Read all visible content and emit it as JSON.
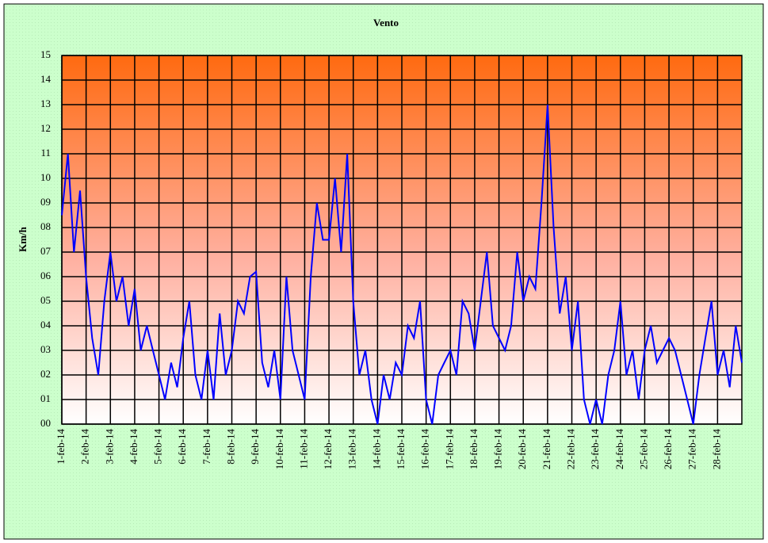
{
  "chart_data": {
    "type": "line",
    "title": "Vento",
    "ylabel": "Km/h",
    "xlim": [
      0,
      28
    ],
    "xticks": [
      {
        "value": 0,
        "label": "1-feb-14"
      },
      {
        "value": 1,
        "label": "2-feb-14"
      },
      {
        "value": 2,
        "label": "3-feb-14"
      },
      {
        "value": 3,
        "label": "4-feb-14"
      },
      {
        "value": 4,
        "label": "5-feb-14"
      },
      {
        "value": 5,
        "label": "6-feb-14"
      },
      {
        "value": 6,
        "label": "7-feb-14"
      },
      {
        "value": 7,
        "label": "8-feb-14"
      },
      {
        "value": 8,
        "label": "9-feb-14"
      },
      {
        "value": 9,
        "label": "10-feb-14"
      },
      {
        "value": 10,
        "label": "11-feb-14"
      },
      {
        "value": 11,
        "label": "12-feb-14"
      },
      {
        "value": 12,
        "label": "13-feb-14"
      },
      {
        "value": 13,
        "label": "14-feb-14"
      },
      {
        "value": 14,
        "label": "15-feb-14"
      },
      {
        "value": 15,
        "label": "16-feb-14"
      },
      {
        "value": 16,
        "label": "17-feb-14"
      },
      {
        "value": 17,
        "label": "18-feb-14"
      },
      {
        "value": 18,
        "label": "19-feb-14"
      },
      {
        "value": 19,
        "label": "20-feb-14"
      },
      {
        "value": 20,
        "label": "21-feb-14"
      },
      {
        "value": 21,
        "label": "22-feb-14"
      },
      {
        "value": 22,
        "label": "23-feb-14"
      },
      {
        "value": 23,
        "label": "24-feb-14"
      },
      {
        "value": 24,
        "label": "25-feb-14"
      },
      {
        "value": 25,
        "label": "26-feb-14"
      },
      {
        "value": 26,
        "label": "27-feb-14"
      },
      {
        "value": 27,
        "label": "28-feb-14"
      }
    ],
    "ylim": [
      0,
      15
    ],
    "yticks": [
      {
        "value": 0,
        "label": "00"
      },
      {
        "value": 1,
        "label": "01"
      },
      {
        "value": 2,
        "label": "02"
      },
      {
        "value": 3,
        "label": "03"
      },
      {
        "value": 4,
        "label": "04"
      },
      {
        "value": 5,
        "label": "05"
      },
      {
        "value": 6,
        "label": "06"
      },
      {
        "value": 7,
        "label": "07"
      },
      {
        "value": 8,
        "label": "08"
      },
      {
        "value": 9,
        "label": "09"
      },
      10,
      11,
      12,
      13,
      14,
      15
    ],
    "grid": true,
    "x": [
      0,
      0.25,
      0.5,
      0.75,
      1,
      1.25,
      1.5,
      1.75,
      2,
      2.25,
      2.5,
      2.75,
      3,
      3.25,
      3.5,
      3.75,
      4,
      4.25,
      4.5,
      4.75,
      5,
      5.25,
      5.5,
      5.75,
      6,
      6.25,
      6.5,
      6.75,
      7,
      7.25,
      7.5,
      7.75,
      8,
      8.25,
      8.5,
      8.75,
      9,
      9.25,
      9.5,
      9.75,
      10,
      10.25,
      10.5,
      10.75,
      11,
      11.25,
      11.5,
      11.75,
      12,
      12.25,
      12.5,
      12.75,
      13,
      13.25,
      13.5,
      13.75,
      14,
      14.25,
      14.5,
      14.75,
      15,
      15.25,
      15.5,
      15.75,
      16,
      16.25,
      16.5,
      16.75,
      17,
      17.25,
      17.5,
      17.75,
      18,
      18.25,
      18.5,
      18.75,
      19,
      19.25,
      19.5,
      19.75,
      20,
      20.25,
      20.5,
      20.75,
      21,
      21.25,
      21.5,
      21.75,
      22,
      22.25,
      22.5,
      22.75,
      23,
      23.25,
      23.5,
      23.75,
      24,
      24.25,
      24.5,
      24.75,
      25,
      25.25,
      25.5,
      25.75,
      26,
      26.25,
      26.5,
      26.75,
      27,
      27.25,
      27.5,
      27.75,
      28
    ],
    "series": [
      {
        "color": "#0000ff",
        "values": [
          8.5,
          11,
          7,
          9.5,
          6,
          3.5,
          2,
          5,
          7,
          5,
          6,
          4,
          5.5,
          3,
          4,
          3,
          2,
          1,
          2.5,
          1.5,
          3.5,
          5,
          2,
          1,
          3,
          1,
          4.5,
          2,
          3,
          5,
          4.5,
          6,
          6.2,
          2.5,
          1.5,
          3,
          1,
          6,
          3,
          2,
          1,
          6,
          9,
          7.5,
          7.5,
          10,
          7,
          11,
          5,
          2,
          3,
          1,
          0,
          2,
          1,
          2.5,
          2,
          4,
          3.5,
          5,
          1,
          0,
          2,
          2.5,
          3,
          2,
          5,
          4.5,
          3,
          5,
          7,
          4,
          3.5,
          3,
          4,
          7,
          5,
          6,
          5.5,
          9,
          13,
          8,
          4.5,
          6,
          3,
          5,
          1,
          0,
          1,
          0,
          2,
          3,
          5,
          2,
          3,
          1,
          3,
          4,
          2.5,
          3,
          3.5,
          3,
          2,
          1,
          0,
          2,
          3.5,
          5,
          2,
          3,
          1.5,
          4,
          2.5
        ]
      }
    ]
  }
}
